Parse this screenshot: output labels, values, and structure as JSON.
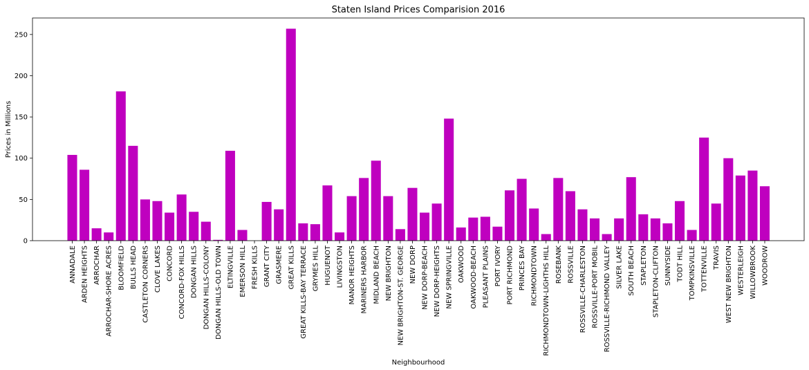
{
  "chart_data": {
    "type": "bar",
    "title": "Staten Island Prices Comparision 2016",
    "xlabel": "Neighbourhood",
    "ylabel": "Prices in Millions",
    "ylim": [
      0,
      270
    ],
    "yticks": [
      0,
      50,
      100,
      150,
      200,
      250
    ],
    "bar_color": "#bf00bf",
    "grid": false,
    "categories": [
      "ANNADALE",
      "ARDEN HEIGHTS",
      "ARROCHAR",
      "ARROCHAR-SHORE ACRES",
      "BLOOMFIELD",
      "BULLS HEAD",
      "CASTLETON CORNERS",
      "CLOVE LAKES",
      "CONCORD",
      "CONCORD-FOX HILLS",
      "DONGAN HILLS",
      "DONGAN HILLS-COLONY",
      "DONGAN HILLS-OLD TOWN",
      "ELTINGVILLE",
      "EMERSON HILL",
      "FRESH KILLS",
      "GRANT CITY",
      "GRASMERE",
      "GREAT KILLS",
      "GREAT KILLS-BAY TERRACE",
      "GRYMES HILL",
      "HUGUENOT",
      "LIVINGSTON",
      "MANOR HEIGHTS",
      "MARINERS HARBOR",
      "MIDLAND BEACH",
      "NEW BRIGHTON",
      "NEW BRIGHTON-ST. GEORGE",
      "NEW DORP",
      "NEW DORP-BEACH",
      "NEW DORP-HEIGHTS",
      "NEW SPRINGVILLE",
      "OAKWOOD",
      "OAKWOOD-BEACH",
      "PLEASANT PLAINS",
      "PORT IVORY",
      "PORT RICHMOND",
      "PRINCES BAY",
      "RICHMONDTOWN",
      "RICHMONDTOWN-LIGHTHS HILL",
      "ROSEBANK",
      "ROSSVILLE",
      "ROSSVILLE-CHARLESTON",
      "ROSSVILLE-PORT MOBIL",
      "ROSSVILLE-RICHMOND VALLEY",
      "SILVER LAKE",
      "SOUTH BEACH",
      "STAPLETON",
      "STAPLETON-CLIFTON",
      "SUNNYSIDE",
      "TODT HILL",
      "TOMPKINSVILLE",
      "TOTTENVILLE",
      "TRAVIS",
      "WEST NEW BRIGHTON",
      "WESTERLEIGH",
      "WILLOWBROOK",
      "WOODROW"
    ],
    "values": [
      104,
      86,
      15,
      10,
      181,
      115,
      50,
      48,
      34,
      56,
      35,
      23,
      1,
      109,
      13,
      0,
      47,
      38,
      257,
      21,
      20,
      67,
      10,
      54,
      76,
      97,
      54,
      14,
      64,
      34,
      45,
      148,
      16,
      28,
      29,
      17,
      61,
      75,
      39,
      8,
      76,
      60,
      38,
      27,
      8,
      27,
      77,
      32,
      27,
      21,
      48,
      13,
      125,
      45,
      100,
      79,
      85,
      66
    ]
  }
}
